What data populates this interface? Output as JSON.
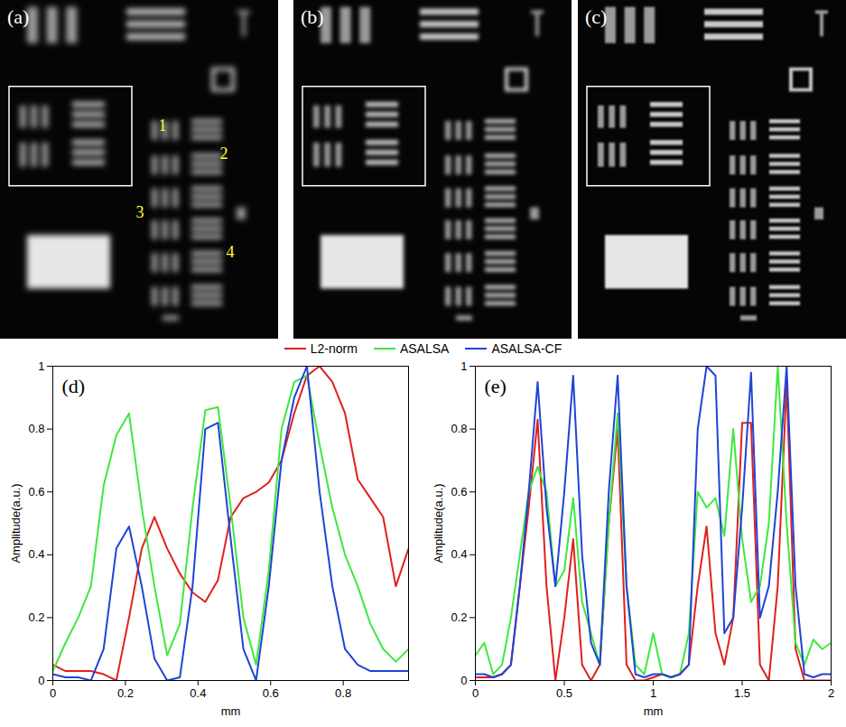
{
  "image_panels": [
    {
      "label": "(a)",
      "annotations": [
        "1",
        "2",
        "3",
        "4"
      ]
    },
    {
      "label": "(b)"
    },
    {
      "label": "(c)"
    }
  ],
  "chart_data": [
    {
      "type": "line",
      "title": "(d)",
      "x_label": "mm",
      "y_label": "Amplitude(a.u.)",
      "xlim": [
        0,
        0.98
      ],
      "xticks": [
        0,
        0.2,
        0.4,
        0.6,
        0.8
      ],
      "ylim": [
        0,
        1
      ],
      "yticks": [
        0,
        0.2,
        0.4,
        0.6,
        0.8,
        1
      ],
      "grid": false,
      "legend": "top",
      "x": [
        0,
        0.035,
        0.07,
        0.105,
        0.14,
        0.175,
        0.21,
        0.245,
        0.28,
        0.315,
        0.35,
        0.385,
        0.42,
        0.455,
        0.49,
        0.525,
        0.56,
        0.595,
        0.63,
        0.665,
        0.7,
        0.735,
        0.77,
        0.805,
        0.84,
        0.875,
        0.91,
        0.945,
        0.98
      ],
      "series": [
        {
          "name": "L2-norm",
          "color": "#e0201e",
          "values": [
            0.05,
            0.03,
            0.03,
            0.03,
            0.02,
            0.0,
            0.2,
            0.42,
            0.52,
            0.42,
            0.34,
            0.28,
            0.25,
            0.32,
            0.52,
            0.58,
            0.6,
            0.63,
            0.7,
            0.85,
            0.97,
            1.0,
            0.95,
            0.85,
            0.64,
            0.58,
            0.52,
            0.3,
            0.42
          ]
        },
        {
          "name": "ASALSA",
          "color": "#3ee83e",
          "values": [
            0.03,
            0.12,
            0.2,
            0.3,
            0.62,
            0.78,
            0.85,
            0.55,
            0.3,
            0.08,
            0.18,
            0.55,
            0.86,
            0.87,
            0.55,
            0.2,
            0.05,
            0.35,
            0.8,
            0.95,
            0.97,
            0.75,
            0.55,
            0.4,
            0.3,
            0.18,
            0.1,
            0.06,
            0.1
          ]
        },
        {
          "name": "ASALSA-CF",
          "color": "#1f44d6",
          "values": [
            0.02,
            0.01,
            0.01,
            0.0,
            0.1,
            0.42,
            0.49,
            0.3,
            0.07,
            0.0,
            0.01,
            0.3,
            0.8,
            0.82,
            0.45,
            0.1,
            0.0,
            0.3,
            0.7,
            0.9,
            1.0,
            0.6,
            0.3,
            0.1,
            0.05,
            0.03,
            0.03,
            0.03,
            0.03
          ]
        }
      ]
    },
    {
      "type": "line",
      "title": "(e)",
      "x_label": "mm",
      "y_label": "Amplitude(a.u.)",
      "xlim": [
        0,
        2
      ],
      "xticks": [
        0,
        0.5,
        1,
        1.5,
        2
      ],
      "ylim": [
        0,
        1
      ],
      "yticks": [
        0,
        0.2,
        0.4,
        0.6,
        0.8,
        1
      ],
      "grid": false,
      "x": [
        0,
        0.05,
        0.1,
        0.15,
        0.2,
        0.25,
        0.3,
        0.35,
        0.4,
        0.45,
        0.5,
        0.55,
        0.6,
        0.65,
        0.7,
        0.75,
        0.8,
        0.85,
        0.9,
        0.95,
        1.0,
        1.05,
        1.1,
        1.15,
        1.2,
        1.25,
        1.3,
        1.35,
        1.4,
        1.45,
        1.5,
        1.55,
        1.6,
        1.65,
        1.7,
        1.75,
        1.8,
        1.85,
        1.9,
        1.95,
        2.0
      ],
      "series": [
        {
          "name": "L2-norm",
          "color": "#e0201e",
          "values": [
            0.01,
            0.01,
            0.01,
            0.02,
            0.05,
            0.3,
            0.55,
            0.83,
            0.3,
            0.0,
            0.2,
            0.45,
            0.05,
            0.0,
            0.05,
            0.5,
            0.8,
            0.05,
            0.0,
            0.0,
            0.01,
            0.02,
            0.01,
            0.02,
            0.05,
            0.3,
            0.49,
            0.15,
            0.05,
            0.2,
            0.82,
            0.82,
            0.05,
            0.0,
            0.3,
            0.95,
            0.1,
            0.0,
            0.0,
            0.0,
            0.0
          ]
        },
        {
          "name": "ASALSA",
          "color": "#3ee83e",
          "values": [
            0.08,
            0.12,
            0.02,
            0.05,
            0.2,
            0.4,
            0.6,
            0.68,
            0.6,
            0.3,
            0.35,
            0.58,
            0.25,
            0.15,
            0.05,
            0.5,
            0.85,
            0.3,
            0.05,
            0.02,
            0.15,
            0.02,
            0.01,
            0.02,
            0.15,
            0.6,
            0.55,
            0.58,
            0.46,
            0.8,
            0.45,
            0.25,
            0.3,
            0.5,
            1.0,
            0.5,
            0.12,
            0.05,
            0.13,
            0.1,
            0.12
          ]
        },
        {
          "name": "ASALSA-CF",
          "color": "#1f44d6",
          "values": [
            0.02,
            0.02,
            0.01,
            0.02,
            0.05,
            0.3,
            0.6,
            0.95,
            0.55,
            0.3,
            0.6,
            0.97,
            0.4,
            0.12,
            0.05,
            0.6,
            0.97,
            0.3,
            0.02,
            0.01,
            0.02,
            0.02,
            0.01,
            0.02,
            0.05,
            0.8,
            1.0,
            0.97,
            0.15,
            0.2,
            0.55,
            0.98,
            0.2,
            0.3,
            0.6,
            1.0,
            0.3,
            0.02,
            0.01,
            0.02,
            0.02
          ]
        }
      ]
    }
  ]
}
